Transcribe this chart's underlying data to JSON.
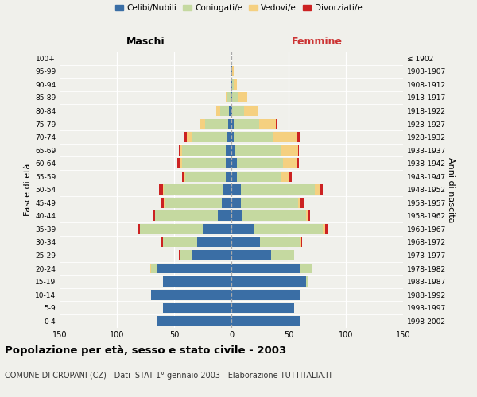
{
  "age_groups": [
    "0-4",
    "5-9",
    "10-14",
    "15-19",
    "20-24",
    "25-29",
    "30-34",
    "35-39",
    "40-44",
    "45-49",
    "50-54",
    "55-59",
    "60-64",
    "65-69",
    "70-74",
    "75-79",
    "80-84",
    "85-89",
    "90-94",
    "95-99",
    "100+"
  ],
  "birth_years": [
    "1998-2002",
    "1993-1997",
    "1988-1992",
    "1983-1987",
    "1978-1982",
    "1973-1977",
    "1968-1972",
    "1963-1967",
    "1958-1962",
    "1953-1957",
    "1948-1952",
    "1943-1947",
    "1938-1942",
    "1933-1937",
    "1928-1932",
    "1923-1927",
    "1918-1922",
    "1913-1917",
    "1908-1912",
    "1903-1907",
    "≤ 1902"
  ],
  "male_celibe": [
    65,
    60,
    70,
    60,
    65,
    35,
    30,
    25,
    12,
    8,
    7,
    5,
    5,
    5,
    4,
    3,
    2,
    1,
    0,
    0,
    0
  ],
  "male_coniugato": [
    0,
    0,
    0,
    0,
    5,
    10,
    30,
    55,
    55,
    50,
    52,
    35,
    38,
    38,
    30,
    20,
    8,
    3,
    1,
    0,
    0
  ],
  "male_vedovo": [
    0,
    0,
    0,
    0,
    1,
    0,
    0,
    0,
    0,
    1,
    1,
    1,
    2,
    2,
    5,
    5,
    3,
    1,
    0,
    0,
    0
  ],
  "male_divorziato": [
    0,
    0,
    0,
    0,
    0,
    1,
    1,
    2,
    1,
    2,
    3,
    2,
    2,
    1,
    2,
    0,
    0,
    0,
    0,
    0,
    0
  ],
  "female_nubile": [
    60,
    55,
    60,
    65,
    60,
    35,
    25,
    20,
    10,
    8,
    8,
    5,
    5,
    3,
    2,
    2,
    1,
    1,
    1,
    1,
    0
  ],
  "female_coniugata": [
    0,
    0,
    0,
    2,
    10,
    20,
    35,
    60,
    55,
    50,
    65,
    38,
    40,
    40,
    35,
    22,
    10,
    5,
    1,
    0,
    0
  ],
  "female_vedova": [
    0,
    0,
    0,
    0,
    0,
    0,
    1,
    2,
    2,
    2,
    5,
    8,
    12,
    15,
    20,
    15,
    12,
    8,
    3,
    1,
    0
  ],
  "female_divorziata": [
    0,
    0,
    0,
    0,
    0,
    0,
    1,
    2,
    2,
    3,
    2,
    2,
    2,
    1,
    3,
    1,
    0,
    0,
    0,
    0,
    0
  ],
  "color_celibe": "#3a6ea5",
  "color_coniugato": "#c5d9a0",
  "color_vedovo": "#f5d080",
  "color_divorziato": "#cc2222",
  "xlim": 150,
  "title": "Popolazione per età, sesso e stato civile - 2003",
  "subtitle": "COMUNE DI CROPANI (CZ) - Dati ISTAT 1° gennaio 2003 - Elaborazione TUTTITALIA.IT",
  "ylabel_left": "Fasce di età",
  "ylabel_right": "Anni di nascita",
  "xlabel_left": "Maschi",
  "xlabel_right": "Femmine",
  "bg_color": "#f0f0eb"
}
